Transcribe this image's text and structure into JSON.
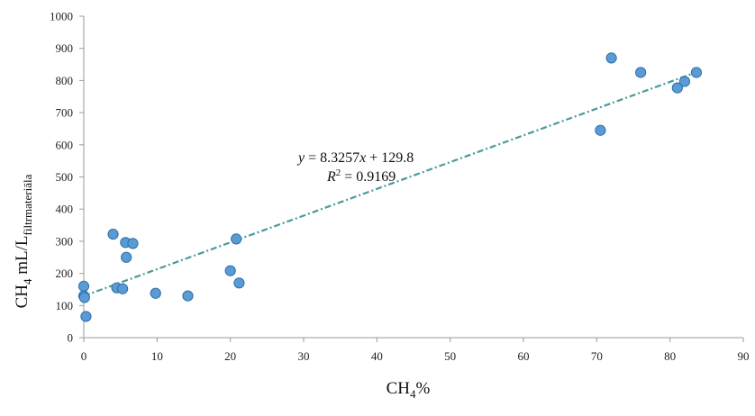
{
  "chart_data": {
    "type": "scatter",
    "title": "",
    "xlabel": {
      "base": "CH",
      "sub": "4",
      "rest": "%"
    },
    "ylabel": {
      "base": "CH",
      "sub": "4",
      "mid": " mL/L",
      "sub2": "filtrmateriāla"
    },
    "xlim": [
      0,
      90
    ],
    "ylim": [
      0,
      1000
    ],
    "xticks": [
      0,
      10,
      20,
      30,
      40,
      50,
      60,
      70,
      80,
      90
    ],
    "yticks": [
      0,
      100,
      200,
      300,
      400,
      500,
      600,
      700,
      800,
      900,
      1000
    ],
    "grid": false,
    "legend": "none",
    "marker_color": "#5B9BD5",
    "marker_edge": "#2E6FA7",
    "trendline_color": "#4A9A9A",
    "series": [
      {
        "points": [
          [
            0.0,
            160
          ],
          [
            0.0,
            130
          ],
          [
            0.1,
            125
          ],
          [
            0.3,
            66
          ],
          [
            4.0,
            322
          ],
          [
            4.5,
            155
          ],
          [
            5.3,
            152
          ],
          [
            5.7,
            296
          ],
          [
            5.8,
            250
          ],
          [
            6.7,
            293
          ],
          [
            9.8,
            138
          ],
          [
            14.2,
            130
          ],
          [
            20.0,
            208
          ],
          [
            20.8,
            307
          ],
          [
            21.2,
            170
          ],
          [
            70.5,
            645
          ],
          [
            72.0,
            870
          ],
          [
            76.0,
            825
          ],
          [
            81.0,
            777
          ],
          [
            82.0,
            797
          ],
          [
            83.6,
            825
          ]
        ]
      }
    ],
    "trendline": {
      "slope": 8.3257,
      "intercept": 129.8,
      "x_range": [
        0,
        83.6
      ],
      "equation": {
        "y": "y",
        "eq1": " = 8.3257",
        "x": "x",
        "eq2": " + 129.8"
      },
      "r2": {
        "r": "R",
        "sup": "2",
        "rest": " = 0.9169"
      }
    }
  }
}
